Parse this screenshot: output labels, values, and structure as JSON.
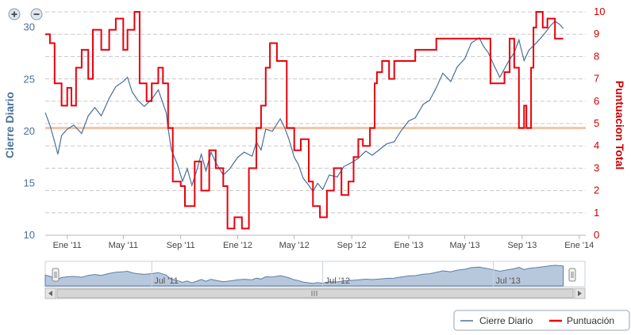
{
  "zoom": {
    "in_icon": "zoom-in-icon",
    "out_icon": "zoom-out-icon"
  },
  "chart_data": {
    "type": "line",
    "title": "",
    "xlabel": "",
    "x_range": [
      "2010-11-15",
      "2014-01-15"
    ],
    "x_ticks": [
      {
        "label": "Ene '11",
        "date": "2011-01-01"
      },
      {
        "label": "May '11",
        "date": "2011-05-01"
      },
      {
        "label": "Sep '11",
        "date": "2011-09-01"
      },
      {
        "label": "Ene '12",
        "date": "2012-01-01"
      },
      {
        "label": "May '12",
        "date": "2012-05-01"
      },
      {
        "label": "Sep '12",
        "date": "2012-09-01"
      },
      {
        "label": "Ene '13",
        "date": "2013-01-01"
      },
      {
        "label": "May '13",
        "date": "2013-05-01"
      },
      {
        "label": "Sep '13",
        "date": "2013-09-01"
      },
      {
        "label": "Ene '14",
        "date": "2014-01-01"
      }
    ],
    "y_left": {
      "label": "Cierre Diario",
      "range": [
        10,
        31.5
      ],
      "ticks": [
        "10",
        "15",
        "20",
        "25",
        "30"
      ]
    },
    "y_right": {
      "label": "Puntuacion Total",
      "range": [
        0,
        10
      ],
      "ticks": [
        "0",
        "1",
        "2",
        "3",
        "4",
        "5",
        "6",
        "7",
        "8",
        "9",
        "10"
      ]
    },
    "grid": true,
    "legend_position": "bottom-right",
    "reference_line": {
      "axis": "right",
      "value": 4.8,
      "color": "#f0c4a4"
    },
    "series": [
      {
        "name": "Cierre Diario",
        "axis": "left",
        "color": "#4a6f98",
        "points": [
          [
            "2010-11-15",
            21.8
          ],
          [
            "2010-11-25",
            20.6
          ],
          [
            "2010-12-05",
            19.0
          ],
          [
            "2010-12-12",
            17.8
          ],
          [
            "2010-12-20",
            19.6
          ],
          [
            "2011-01-01",
            20.2
          ],
          [
            "2011-01-15",
            20.6
          ],
          [
            "2011-02-01",
            19.8
          ],
          [
            "2011-02-15",
            21.5
          ],
          [
            "2011-03-01",
            22.3
          ],
          [
            "2011-03-15",
            21.5
          ],
          [
            "2011-04-01",
            23.2
          ],
          [
            "2011-04-15",
            24.3
          ],
          [
            "2011-05-01",
            24.8
          ],
          [
            "2011-05-10",
            25.2
          ],
          [
            "2011-05-20",
            23.8
          ],
          [
            "2011-06-01",
            23.0
          ],
          [
            "2011-06-15",
            22.4
          ],
          [
            "2011-07-01",
            23.1
          ],
          [
            "2011-07-15",
            24.0
          ],
          [
            "2011-08-01",
            21.8
          ],
          [
            "2011-08-05",
            20.3
          ],
          [
            "2011-08-12",
            18.2
          ],
          [
            "2011-08-25",
            16.8
          ],
          [
            "2011-09-05",
            15.2
          ],
          [
            "2011-09-15",
            16.4
          ],
          [
            "2011-09-25",
            14.8
          ],
          [
            "2011-10-05",
            16.2
          ],
          [
            "2011-10-15",
            17.8
          ],
          [
            "2011-10-25",
            16.2
          ],
          [
            "2011-11-05",
            18.0
          ],
          [
            "2011-11-15",
            17.0
          ],
          [
            "2011-12-01",
            15.8
          ],
          [
            "2011-12-15",
            16.4
          ],
          [
            "2012-01-01",
            17.5
          ],
          [
            "2012-01-15",
            18.0
          ],
          [
            "2012-02-01",
            17.6
          ],
          [
            "2012-02-10",
            19.0
          ],
          [
            "2012-02-20",
            18.2
          ],
          [
            "2012-03-01",
            20.2
          ],
          [
            "2012-03-15",
            20.0
          ],
          [
            "2012-04-01",
            21.2
          ],
          [
            "2012-04-10",
            20.4
          ],
          [
            "2012-04-20",
            19.2
          ],
          [
            "2012-05-01",
            17.5
          ],
          [
            "2012-05-10",
            16.8
          ],
          [
            "2012-05-20",
            15.5
          ],
          [
            "2012-06-01",
            14.8
          ],
          [
            "2012-06-10",
            14.2
          ],
          [
            "2012-06-20",
            15.0
          ],
          [
            "2012-07-01",
            14.4
          ],
          [
            "2012-07-15",
            15.8
          ],
          [
            "2012-08-01",
            15.6
          ],
          [
            "2012-08-15",
            16.6
          ],
          [
            "2012-09-01",
            17.0
          ],
          [
            "2012-09-15",
            17.4
          ],
          [
            "2012-10-01",
            18.1
          ],
          [
            "2012-10-15",
            17.7
          ],
          [
            "2012-11-01",
            18.3
          ],
          [
            "2012-11-15",
            18.8
          ],
          [
            "2012-12-01",
            19.0
          ],
          [
            "2012-12-15",
            20.0
          ],
          [
            "2013-01-01",
            21.0
          ],
          [
            "2013-01-15",
            21.3
          ],
          [
            "2013-02-01",
            22.6
          ],
          [
            "2013-02-15",
            23.0
          ],
          [
            "2013-03-01",
            24.2
          ],
          [
            "2013-03-15",
            25.6
          ],
          [
            "2013-04-01",
            24.8
          ],
          [
            "2013-04-15",
            26.2
          ],
          [
            "2013-05-01",
            27.0
          ],
          [
            "2013-05-15",
            28.5
          ],
          [
            "2013-06-01",
            29.0
          ],
          [
            "2013-06-10",
            28.2
          ],
          [
            "2013-06-20",
            27.6
          ],
          [
            "2013-07-01",
            26.5
          ],
          [
            "2013-07-15",
            25.2
          ],
          [
            "2013-08-01",
            26.6
          ],
          [
            "2013-08-15",
            27.6
          ],
          [
            "2013-08-25",
            28.8
          ],
          [
            "2013-09-05",
            26.8
          ],
          [
            "2013-09-15",
            27.8
          ],
          [
            "2013-10-01",
            28.5
          ],
          [
            "2013-10-15",
            29.2
          ],
          [
            "2013-11-01",
            30.2
          ],
          [
            "2013-11-10",
            30.6
          ],
          [
            "2013-11-20",
            30.3
          ],
          [
            "2013-11-28",
            29.9
          ]
        ]
      },
      {
        "name": "Puntuación",
        "axis": "right",
        "color": "#e8000b",
        "step": true,
        "points": [
          [
            "2010-11-15",
            9.0
          ],
          [
            "2010-11-25",
            8.6
          ],
          [
            "2010-12-05",
            6.8
          ],
          [
            "2010-12-20",
            5.8
          ],
          [
            "2011-01-01",
            6.6
          ],
          [
            "2011-01-10",
            5.8
          ],
          [
            "2011-01-20",
            7.5
          ],
          [
            "2011-02-01",
            8.3
          ],
          [
            "2011-02-15",
            7.0
          ],
          [
            "2011-02-25",
            9.2
          ],
          [
            "2011-03-15",
            8.3
          ],
          [
            "2011-04-01",
            9.2
          ],
          [
            "2011-04-15",
            9.7
          ],
          [
            "2011-05-01",
            8.3
          ],
          [
            "2011-05-10",
            9.2
          ],
          [
            "2011-05-25",
            10.0
          ],
          [
            "2011-06-05",
            6.8
          ],
          [
            "2011-06-20",
            6.0
          ],
          [
            "2011-07-01",
            6.8
          ],
          [
            "2011-07-15",
            7.5
          ],
          [
            "2011-07-25",
            6.8
          ],
          [
            "2011-08-05",
            4.8
          ],
          [
            "2011-08-15",
            2.4
          ],
          [
            "2011-09-01",
            2.2
          ],
          [
            "2011-09-10",
            1.3
          ],
          [
            "2011-10-01",
            3.3
          ],
          [
            "2011-10-15",
            2.0
          ],
          [
            "2011-11-01",
            3.8
          ],
          [
            "2011-11-15",
            3.0
          ],
          [
            "2011-12-01",
            2.2
          ],
          [
            "2011-12-10",
            0.3
          ],
          [
            "2011-12-25",
            0.8
          ],
          [
            "2012-01-10",
            0.3
          ],
          [
            "2012-01-25",
            3.0
          ],
          [
            "2012-02-10",
            4.8
          ],
          [
            "2012-02-20",
            5.8
          ],
          [
            "2012-03-01",
            7.5
          ],
          [
            "2012-03-10",
            8.6
          ],
          [
            "2012-03-25",
            7.8
          ],
          [
            "2012-04-15",
            4.8
          ],
          [
            "2012-05-01",
            3.8
          ],
          [
            "2012-05-15",
            4.3
          ],
          [
            "2012-06-01",
            2.4
          ],
          [
            "2012-06-10",
            1.3
          ],
          [
            "2012-06-25",
            0.8
          ],
          [
            "2012-07-10",
            2.0
          ],
          [
            "2012-07-25",
            3.0
          ],
          [
            "2012-08-10",
            1.8
          ],
          [
            "2012-08-25",
            2.4
          ],
          [
            "2012-09-05",
            3.5
          ],
          [
            "2012-09-15",
            4.3
          ],
          [
            "2012-09-25",
            4.0
          ],
          [
            "2012-10-10",
            4.8
          ],
          [
            "2012-10-20",
            6.8
          ],
          [
            "2012-10-25",
            7.3
          ],
          [
            "2012-11-05",
            7.8
          ],
          [
            "2012-11-20",
            7.0
          ],
          [
            "2012-12-01",
            7.8
          ],
          [
            "2012-12-15",
            7.8
          ],
          [
            "2013-01-01",
            7.8
          ],
          [
            "2013-01-15",
            8.3
          ],
          [
            "2013-02-01",
            8.3
          ],
          [
            "2013-03-01",
            8.8
          ],
          [
            "2013-04-01",
            8.8
          ],
          [
            "2013-05-01",
            8.8
          ],
          [
            "2013-06-01",
            8.8
          ],
          [
            "2013-06-25",
            6.8
          ],
          [
            "2013-07-15",
            6.8
          ],
          [
            "2013-07-25",
            7.3
          ],
          [
            "2013-08-05",
            8.8
          ],
          [
            "2013-08-15",
            7.5
          ],
          [
            "2013-08-25",
            4.8
          ],
          [
            "2013-09-05",
            5.8
          ],
          [
            "2013-09-10",
            4.8
          ],
          [
            "2013-09-20",
            7.5
          ],
          [
            "2013-09-25",
            9.3
          ],
          [
            "2013-10-01",
            10.0
          ],
          [
            "2013-10-15",
            9.3
          ],
          [
            "2013-10-25",
            9.7
          ],
          [
            "2013-11-10",
            8.8
          ],
          [
            "2013-11-28",
            8.8
          ]
        ]
      }
    ]
  },
  "navigator": {
    "labels": [
      "Jul '11",
      "Jul '12",
      "Jul '13"
    ],
    "label_dates": [
      "2011-07-01",
      "2012-07-01",
      "2013-07-01"
    ],
    "scroll_left_icon": "arrow-left-icon",
    "scroll_right_icon": "arrow-right-icon",
    "grip_icon": "scrollbar-grip-icon"
  },
  "legend": {
    "items": [
      {
        "label": "Cierre Diario",
        "color": "#4a6f98"
      },
      {
        "label": "Puntuación",
        "color": "#e8000b"
      }
    ]
  }
}
